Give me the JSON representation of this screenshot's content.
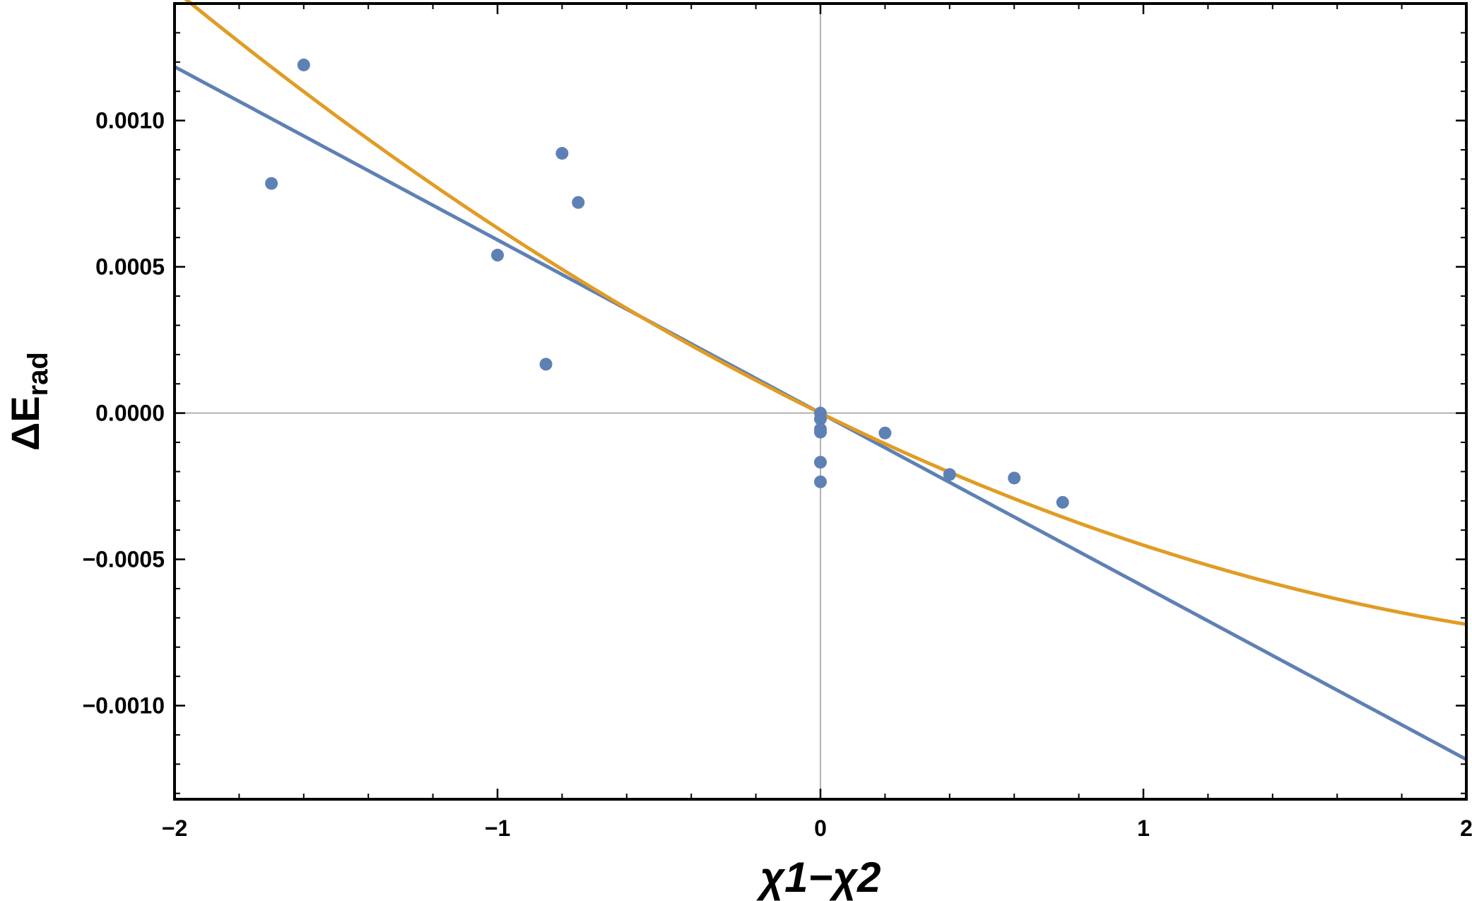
{
  "chart_data": {
    "type": "scatter",
    "xlabel": "χ1−χ2",
    "ylabel": {
      "main": "ΔE",
      "sub": "rad"
    },
    "xlim": [
      -2,
      2
    ],
    "ylim": [
      -0.00132,
      0.0014
    ],
    "x_ticks": [
      {
        "value": -2,
        "label": "−2"
      },
      {
        "value": -1,
        "label": "−1"
      },
      {
        "value": 0,
        "label": "0"
      },
      {
        "value": 1,
        "label": "1"
      },
      {
        "value": 2,
        "label": "2"
      }
    ],
    "y_ticks": [
      {
        "value": 0.001,
        "label": "0.0010"
      },
      {
        "value": 0.0005,
        "label": "0.0005"
      },
      {
        "value": 0,
        "label": "0.0000"
      },
      {
        "value": -0.0005,
        "label": "−0.0005"
      },
      {
        "value": -0.001,
        "label": "−0.0010"
      }
    ],
    "x_minor_step": 0.2,
    "y_minor_step": 0.0001,
    "origin_axes": true,
    "grid": false,
    "colors": {
      "points": "#5e81b5",
      "linear_fit": "#5e81b5",
      "quadratic_fit": "#e19c24",
      "frame": "#000000",
      "origin_axes": "#999999"
    },
    "series": [
      {
        "type": "scatter",
        "color": "#5e81b5",
        "points": [
          [
            -1.6,
            0.00119
          ],
          [
            -1.7,
            0.000785
          ],
          [
            -0.8,
            0.000888
          ],
          [
            -0.75,
            0.00072
          ],
          [
            -1.0,
            0.00054
          ],
          [
            -0.85,
            0.000167
          ],
          [
            0.0,
            0.0
          ],
          [
            0.0,
            -2e-05
          ],
          [
            0.0,
            -5.5e-05
          ],
          [
            0.0,
            -6.5e-05
          ],
          [
            0.0,
            -0.000168
          ],
          [
            0.0,
            -0.000235
          ],
          [
            0.2,
            -6.8e-05
          ],
          [
            0.4,
            -0.00021
          ],
          [
            0.6,
            -0.000222
          ],
          [
            0.75,
            -0.000305
          ]
        ]
      },
      {
        "type": "line",
        "color": "#5e81b5",
        "formula": "linear",
        "coefficients": [
          0,
          -0.000592
        ]
      },
      {
        "type": "line",
        "color": "#e19c24",
        "formula": "quadratic",
        "coefficients": [
          0,
          -0.000542,
          9.05e-05
        ]
      }
    ]
  }
}
